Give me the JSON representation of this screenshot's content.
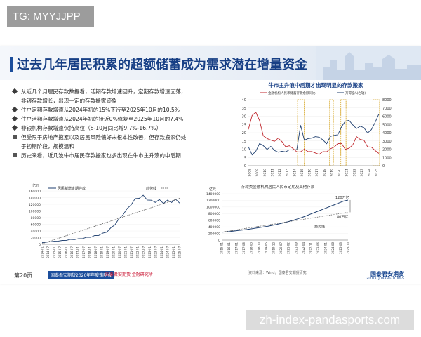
{
  "overlay_tag": "TG: MYYJJPP",
  "slide": {
    "title": "过去几年居民积累的超额储蓄成为需求潜在增量资金",
    "bullets": [
      {
        "kind": "diamond",
        "text": "从近几个月居民存款数据看，活期存款增速回升，定期存款增速回落，"
      },
      {
        "kind": "sub",
        "text": "非银存款增长，出现一定的存款搬家迹象"
      },
      {
        "kind": "diamond",
        "text": "住户定期存款增速从2024年初的15%下行至2025年10月的10.5%"
      },
      {
        "kind": "diamond",
        "text": "住户活期存款增速从2024年初的接近0%修复至2025年10月的7.4%"
      },
      {
        "kind": "diamond",
        "text": "非银机构存款增速保持高位（8-10月同比增9.7%-16.7%）"
      },
      {
        "kind": "square",
        "text": "但受限于房地产拖累以及居民风险偏好未根本性改善，但存款搬家仍处"
      },
      {
        "kind": "sub",
        "text": "于初期阶段，规模温和"
      },
      {
        "kind": "square",
        "text": "历史来看，近几波牛市居民存款搬家也多出现在牛市主升浪的中后期"
      }
    ],
    "footer": {
      "page": "第20页",
      "banner": "国泰君安期货2026年年度策略会",
      "banner2": "国泰君安期货 金融研究所",
      "source": "资料来源：Wind，国泰君安期货研究",
      "logo": "国泰君安期货",
      "logo_en": "GUOTAI JUNAN FUTURES"
    }
  },
  "watermark": "zh-index-pandasports.com",
  "chart_data": [
    {
      "type": "line",
      "title": "牛市主升浪中后期才出现明显的存款搬家",
      "series": [
        {
          "name": "金融机构人民币储蓄存款余额同比",
          "axis": "left",
          "color": "#c0272d",
          "x": [
            2008,
            2008.5,
            2009,
            2009.5,
            2010,
            2010.5,
            2011,
            2011.5,
            2012,
            2012.5,
            2013,
            2013.5,
            2014,
            2014.5,
            2015,
            2015.5,
            2016,
            2016.5,
            2017,
            2017.5,
            2018,
            2018.5,
            2019,
            2019.5,
            2020,
            2020.5,
            2021,
            2021.5,
            2022,
            2022.5,
            2023,
            2023.5,
            2024,
            2024.5,
            2025,
            2025.5
          ],
          "values": [
            22,
            30,
            33,
            27,
            18,
            17,
            15,
            15,
            17,
            14,
            12,
            12,
            10,
            9,
            8,
            10,
            9,
            8,
            8,
            7,
            8,
            9,
            10,
            11,
            14,
            13,
            10,
            11,
            12,
            18,
            16,
            15,
            12,
            11,
            9,
            8
          ]
        },
        {
          "name": "万得全A(右轴)",
          "axis": "right",
          "color": "#1f3f6f",
          "x": [
            2008,
            2008.5,
            2009,
            2009.5,
            2010,
            2010.5,
            2011,
            2011.5,
            2012,
            2012.5,
            2013,
            2013.5,
            2014,
            2014.5,
            2015,
            2015.5,
            2016,
            2016.5,
            2017,
            2017.5,
            2018,
            2018.5,
            2019,
            2019.5,
            2020,
            2020.5,
            2021,
            2021.5,
            2022,
            2022.5,
            2023,
            2023.5,
            2024,
            2024.5,
            2025,
            2025.5
          ],
          "values": [
            2300,
            1200,
            1900,
            2600,
            2400,
            2100,
            2200,
            1900,
            1700,
            1600,
            1800,
            1900,
            1800,
            2100,
            4800,
            3100,
            3400,
            3200,
            3600,
            3500,
            3000,
            2800,
            3500,
            3600,
            3900,
            4600,
            5400,
            5600,
            4800,
            4600,
            4800,
            4500,
            4100,
            4300,
            5200,
            6400
          ]
        }
      ],
      "y_left": [
        0,
        40
      ],
      "y_left_ticks": [
        0,
        5,
        10,
        15,
        20,
        25,
        30,
        35,
        40
      ],
      "y_right": [
        0,
        8000
      ],
      "y_right_ticks": [
        0,
        1000,
        2000,
        3000,
        4000,
        5000,
        6000,
        7000,
        8000
      ],
      "x_ticks": [
        "2008",
        "2009",
        "2010",
        "2011",
        "2012",
        "2013",
        "2014",
        "2015",
        "2016",
        "2017",
        "2018",
        "2019",
        "2020",
        "2021",
        "2022",
        "2023",
        "2024",
        "2025"
      ],
      "highlight_periods": [
        [
          2014.6,
          2015.5
        ],
        [
          2018.9,
          2019.4
        ],
        [
          2020.4,
          2021.1
        ],
        [
          2024.7,
          2025.6
        ]
      ]
    },
    {
      "type": "line",
      "title": "居民新增定期存款",
      "unit": "亿元",
      "series": [
        {
          "name": "居民新增定期存款",
          "color": "#1f3f6f",
          "values": [
            5000,
            6000,
            8000,
            9000,
            10000,
            11000,
            12500,
            14000,
            15000,
            16000,
            18000,
            20000,
            22000,
            25000,
            28000,
            32000,
            38000,
            48000,
            60000,
            75000,
            90000,
            105000,
            120000,
            135000,
            140000,
            145000,
            135000,
            130000,
            128000,
            132000,
            125000,
            130000,
            128000,
            133000,
            126000
          ]
        },
        {
          "name": "趋势线",
          "color": "#4a4a4a",
          "values": [
            2000,
            6000,
            10000,
            14000,
            18000,
            22000,
            26000,
            30000,
            34000,
            38000,
            42000,
            46000,
            50000,
            54000,
            58000,
            62000,
            66000,
            70000,
            74000,
            78000,
            82000,
            86000,
            90000,
            94000,
            98000,
            102000,
            106000,
            110000,
            114000,
            118000,
            122000,
            126000,
            130000,
            134000,
            138000
          ]
        }
      ],
      "y_range": [
        0,
        160000
      ],
      "y_ticks": [
        "0",
        "20000",
        "40000",
        "60000",
        "80000",
        "100000",
        "120000",
        "140000",
        "160000"
      ],
      "x_ticks": [
        "2014-01",
        "2014-07",
        "2015-01",
        "2015-07",
        "2016-01",
        "2016-07",
        "2017-01",
        "2017-07",
        "2018-01",
        "2018-07",
        "2019-01",
        "2019-07",
        "2020-01",
        "2020-07",
        "2021-01",
        "2021-07",
        "2022-01",
        "2022-07",
        "2023-01",
        "2023-07",
        "2024-01",
        "2024-07",
        "2025-01",
        "2025-07"
      ],
      "annotation": "趋势线"
    },
    {
      "type": "line",
      "title": "存款类金融机构居民人民币定期及其他存款",
      "unit": "亿元",
      "series": [
        {
          "name": "居民定期及其他存款",
          "color": "#1f3f6f",
          "values": [
            240000,
            250000,
            260000,
            275000,
            290000,
            305000,
            320000,
            340000,
            360000,
            380000,
            400000,
            420000,
            445000,
            470000,
            500000,
            530000,
            565000,
            600000,
            640000,
            680000,
            730000,
            780000,
            830000,
            880000,
            930000,
            980000,
            1030000,
            1080000,
            1130000,
            1180000,
            1210000
          ]
        },
        {
          "name": "趋势线",
          "color": "#4a4a4a",
          "values": [
            240000,
            260000,
            280000,
            300000,
            320000,
            340000,
            360000,
            380000,
            400000,
            420000,
            440000,
            460000,
            480000,
            500000,
            520000,
            540000,
            560000,
            580000,
            600000,
            620000,
            640000,
            660000,
            680000,
            700000,
            720000,
            740000,
            760000,
            780000,
            800000,
            820000,
            840000
          ]
        }
      ],
      "y_range": [
        0,
        1400000
      ],
      "y_ticks": [
        "0",
        "200000",
        "400000",
        "600000",
        "800000",
        "1000000",
        "1200000",
        "1400000"
      ],
      "x_ticks": [
        "2015-01",
        "2016-01",
        "2017-01",
        "2017-08",
        "2018-03",
        "2018-10",
        "2019-05",
        "2019-12",
        "2020-07",
        "2021-02",
        "2021-09",
        "2022-04",
        "2022-11",
        "2023-06",
        "2024-01",
        "2024-08",
        "2025-03",
        "2025-10"
      ],
      "annotations": [
        "120万亿",
        "80万亿",
        "趋势线"
      ]
    }
  ]
}
